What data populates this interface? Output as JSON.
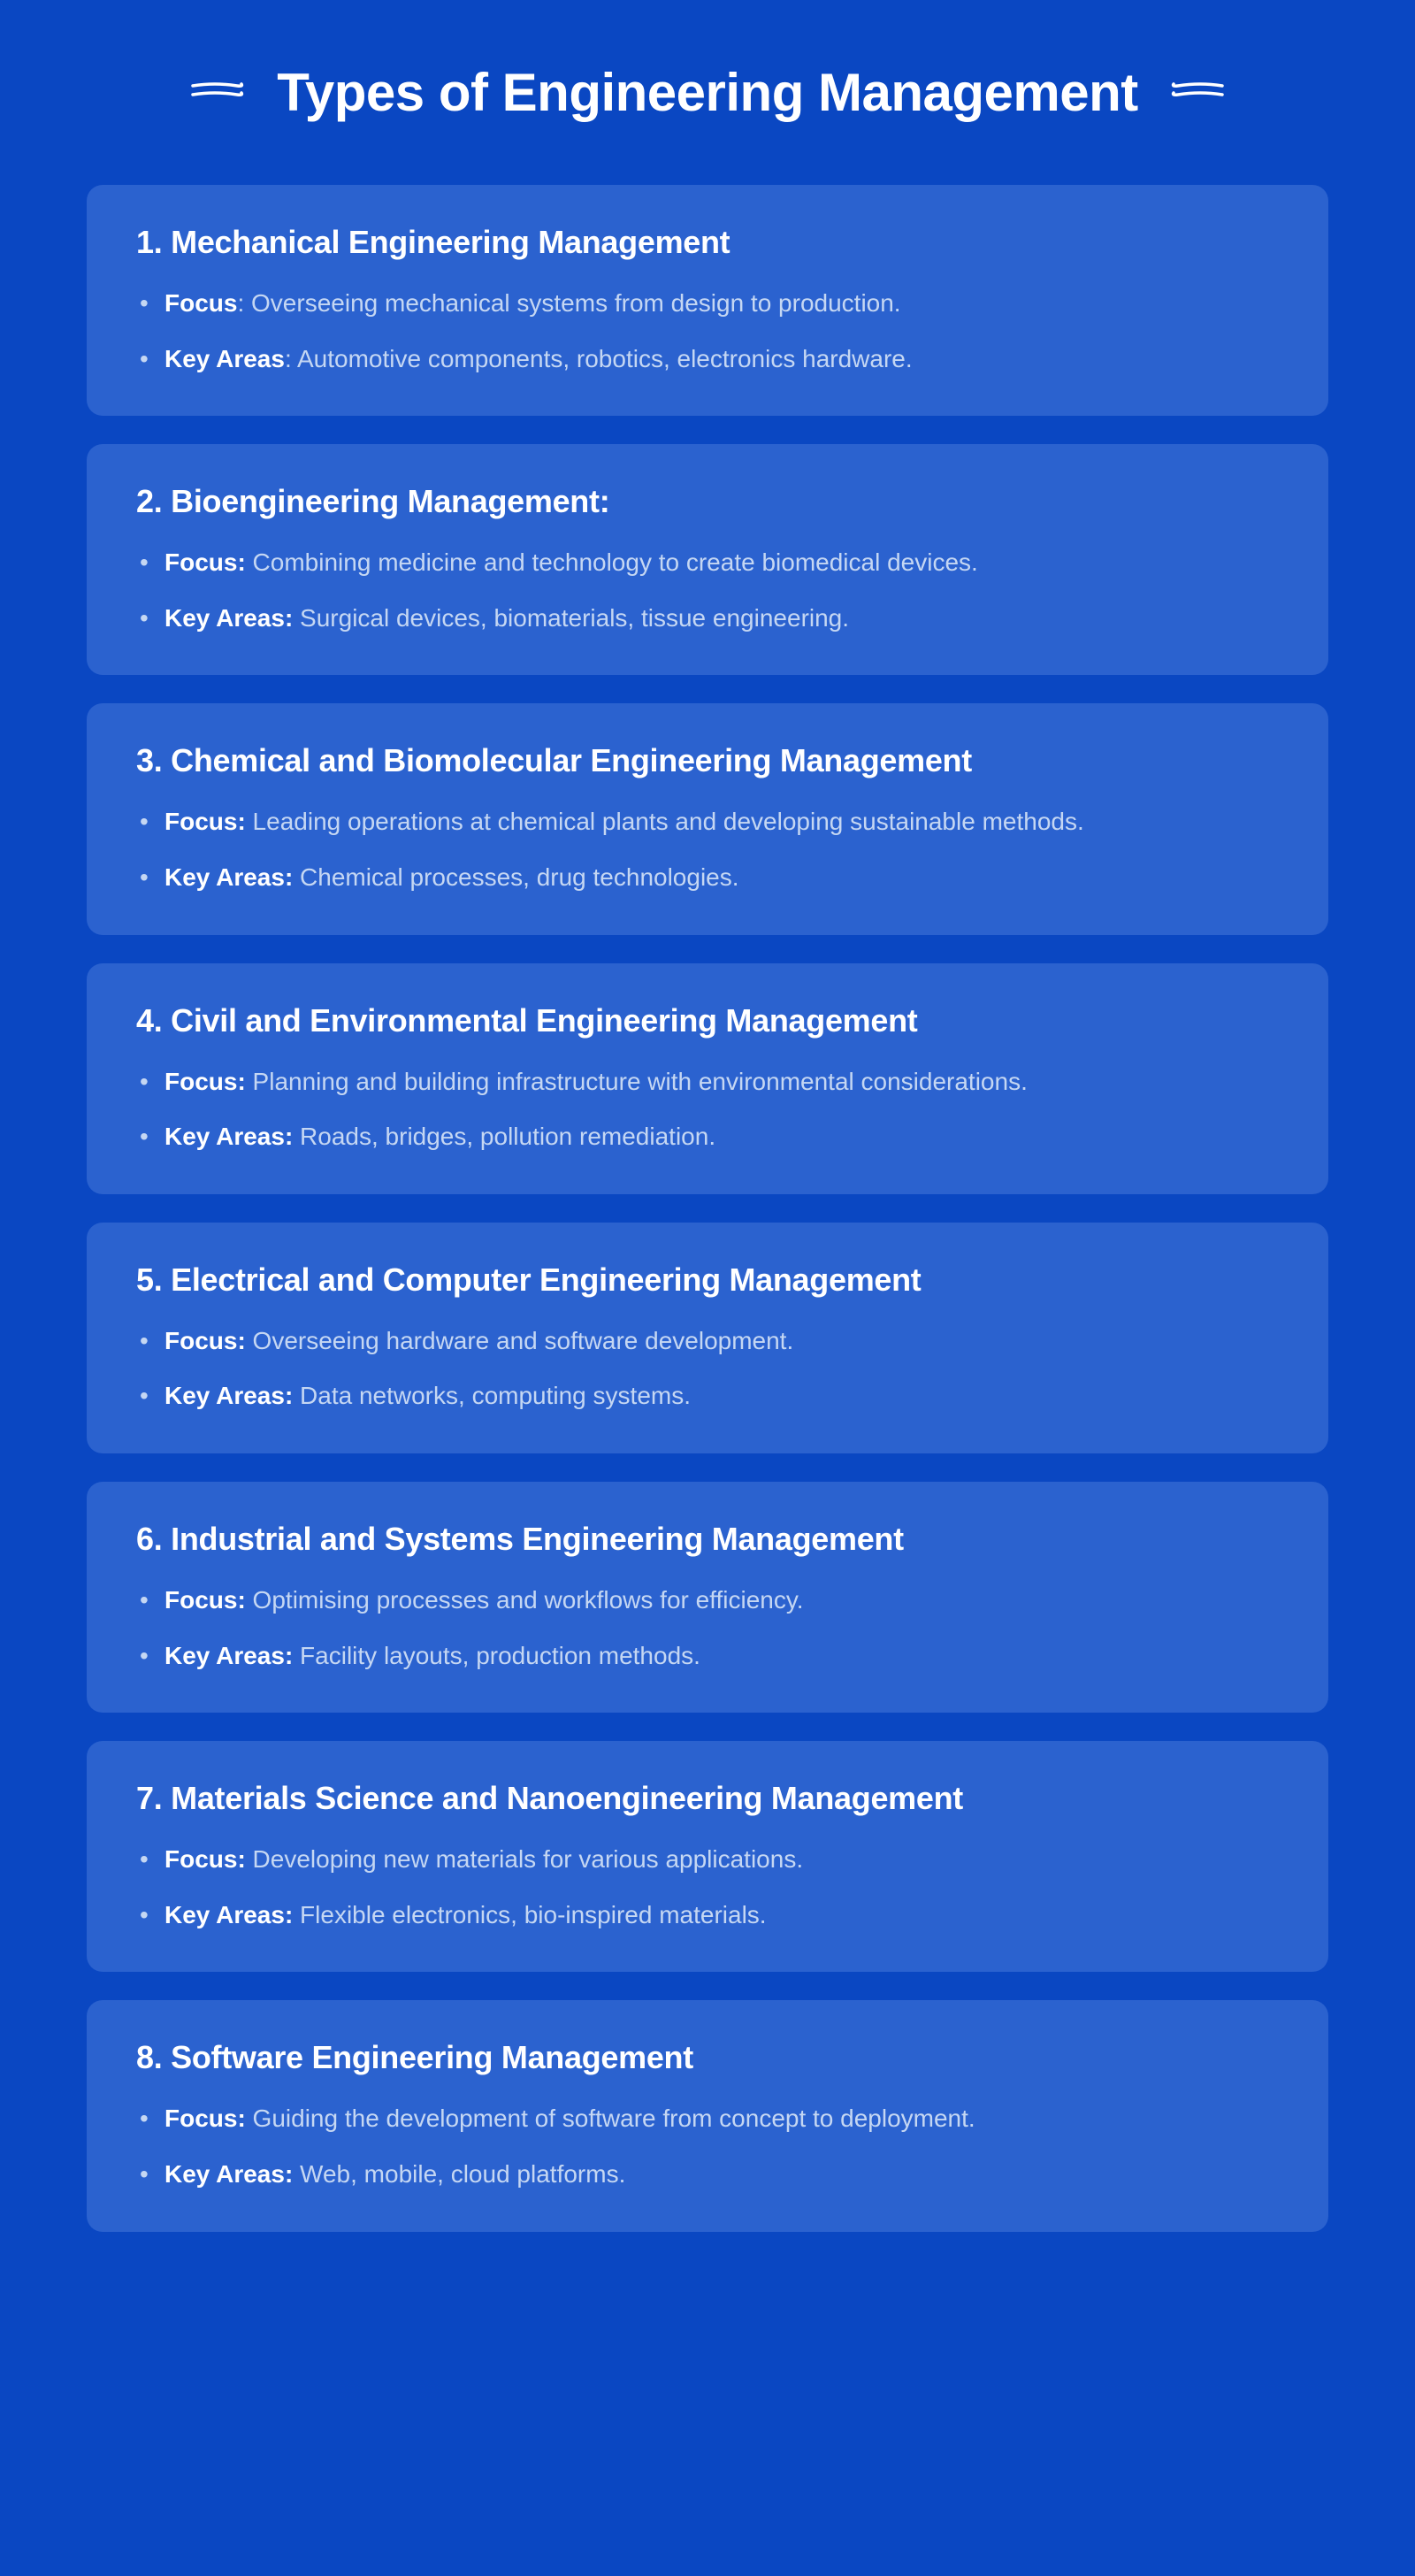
{
  "page": {
    "title": "Types of Engineering Management",
    "background_color": "#0a47c2",
    "card_background_color": "#2b62cf",
    "text_color": "#ffffff",
    "secondary_text_color": "#c5d7f3",
    "title_fontsize": 60,
    "card_title_fontsize": 36,
    "bullet_fontsize": 28,
    "card_border_radius": 18
  },
  "cards": [
    {
      "number": "1",
      "title": "Mechanical Engineering Management",
      "focus_label": "Focus",
      "focus_separator": ": ",
      "focus_text": "Overseeing mechanical systems from design to production.",
      "key_label": "Key Areas",
      "key_separator": ": ",
      "key_text": "Automotive components, robotics, electronics hardware."
    },
    {
      "number": "2",
      "title": "Bioengineering Management:",
      "focus_label": "Focus:",
      "focus_separator": " ",
      "focus_text": "Combining medicine and technology to create biomedical devices.",
      "key_label": "Key Areas:",
      "key_separator": " ",
      "key_text": "Surgical devices, biomaterials, tissue engineering."
    },
    {
      "number": "3",
      "title": "Chemical and Biomolecular Engineering Management",
      "focus_label": "Focus:",
      "focus_separator": " ",
      "focus_text": "Leading operations at chemical plants and developing sustainable methods.",
      "key_label": "Key Areas:",
      "key_separator": " ",
      "key_text": "Chemical processes, drug technologies."
    },
    {
      "number": "4",
      "title": "Civil and Environmental Engineering Management",
      "focus_label": "Focus:",
      "focus_separator": " ",
      "focus_text": "Planning and building infrastructure with environmental considerations.",
      "key_label": "Key Areas:",
      "key_separator": " ",
      "key_text": "Roads, bridges, pollution remediation."
    },
    {
      "number": "5",
      "title": "Electrical and Computer Engineering Management",
      "focus_label": "Focus:",
      "focus_separator": " ",
      "focus_text": "Overseeing hardware and software development.",
      "key_label": "Key Areas:",
      "key_separator": " ",
      "key_text": "Data networks, computing systems."
    },
    {
      "number": "6",
      "title": "Industrial and Systems Engineering Management",
      "focus_label": "Focus:",
      "focus_separator": " ",
      "focus_text": "Optimising processes and workflows for efficiency.",
      "key_label": "Key Areas:",
      "key_separator": " ",
      "key_text": "Facility layouts, production methods."
    },
    {
      "number": "7",
      "title": "Materials Science and Nanoengineering Management",
      "focus_label": "Focus:",
      "focus_separator": " ",
      "focus_text": "Developing new materials for various applications.",
      "key_label": "Key Areas:",
      "key_separator": " ",
      "key_text": "Flexible electronics, bio-inspired materials."
    },
    {
      "number": "8",
      "title": "Software Engineering Management",
      "focus_label": "Focus:",
      "focus_separator": " ",
      "focus_text": "Guiding the development of software from concept to deployment.",
      "key_label": "Key Areas:",
      "key_separator": " ",
      "key_text": "Web, mobile, cloud platforms."
    }
  ]
}
